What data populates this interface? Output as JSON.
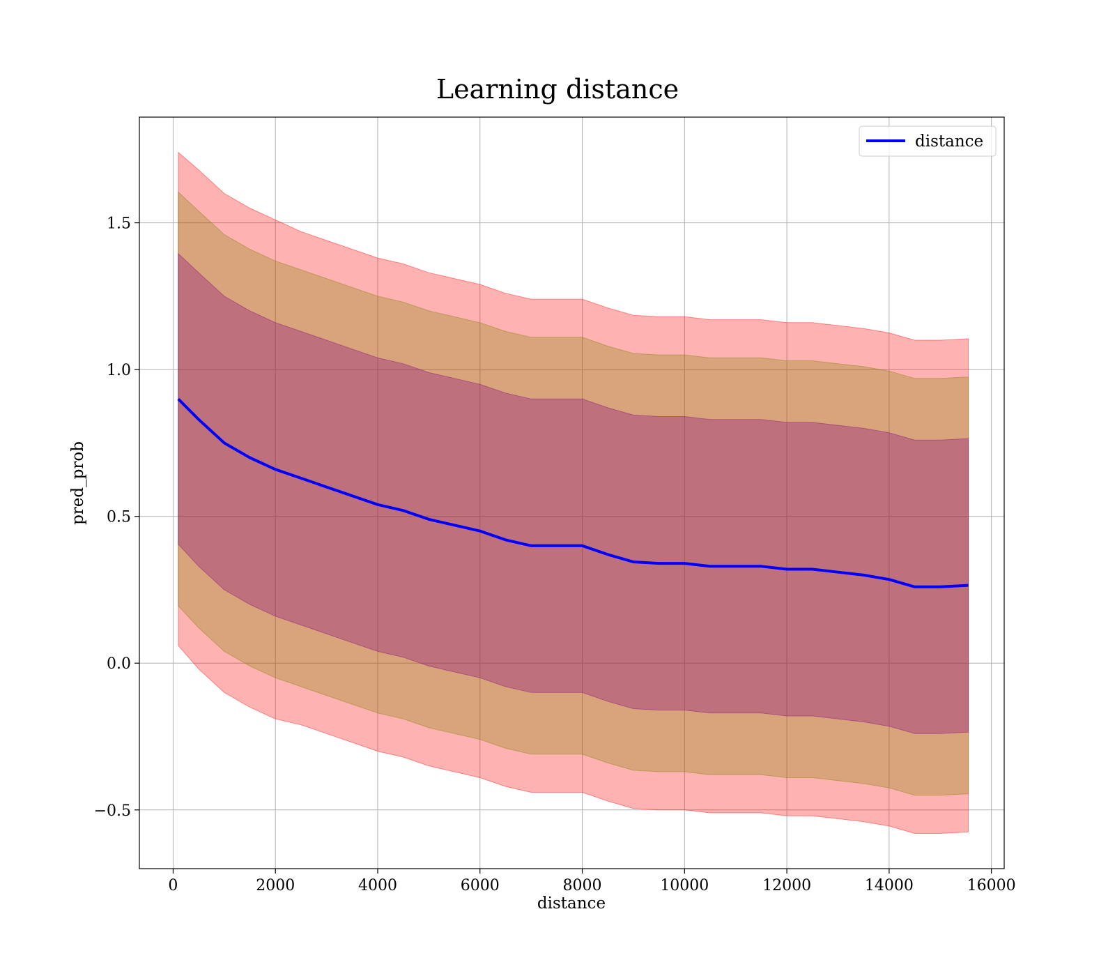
{
  "chart_data": {
    "type": "area",
    "title": "Learning distance",
    "xlabel": "distance",
    "ylabel": "pred_prob",
    "xlim": [
      -660,
      16250
    ],
    "ylim": [
      -0.7,
      1.86
    ],
    "xticks": [
      0,
      2000,
      4000,
      6000,
      8000,
      10000,
      12000,
      14000,
      16000
    ],
    "xtick_labels": [
      "0",
      "2000",
      "4000",
      "6000",
      "8000",
      "10000",
      "12000",
      "14000",
      "16000"
    ],
    "yticks": [
      -0.5,
      0.0,
      0.5,
      1.0,
      1.5
    ],
    "ytick_labels": [
      "−0.5",
      "0.0",
      "0.5",
      "1.0",
      "1.5"
    ],
    "grid": true,
    "legend": {
      "position": "top-right",
      "entries": [
        "distance"
      ]
    },
    "x": [
      100,
      500,
      1000,
      1500,
      2000,
      2500,
      3000,
      3500,
      4000,
      4500,
      5000,
      5500,
      6000,
      6500,
      7000,
      7500,
      8000,
      8500,
      9000,
      9500,
      10000,
      10500,
      11000,
      11500,
      12000,
      12500,
      13000,
      13500,
      14000,
      14500,
      15000,
      15550
    ],
    "series": [
      {
        "name": "distance",
        "values": [
          0.9,
          0.83,
          0.75,
          0.7,
          0.66,
          0.63,
          0.6,
          0.57,
          0.54,
          0.52,
          0.49,
          0.47,
          0.45,
          0.42,
          0.4,
          0.4,
          0.4,
          0.37,
          0.345,
          0.34,
          0.34,
          0.33,
          0.33,
          0.33,
          0.32,
          0.32,
          0.31,
          0.3,
          0.285,
          0.26,
          0.26,
          0.265
        ],
        "color": "#0000ff"
      }
    ],
    "bands": [
      {
        "k": 1,
        "color": "#800080",
        "opacity": 0.3
      },
      {
        "k": 2,
        "color": "#808000",
        "opacity": 0.3
      },
      {
        "k": 3,
        "color": "#ff0000",
        "opacity": 0.3
      }
    ],
    "band_halfwidth": [
      0.5,
      0.51,
      0.51,
      0.515,
      0.51,
      0.505,
      0.505,
      0.505,
      0.5,
      0.5,
      0.5,
      0.5,
      0.5,
      0.5,
      0.5,
      0.5,
      0.5,
      0.5,
      0.5,
      0.5,
      0.5,
      0.5,
      0.5,
      0.5,
      0.5,
      0.5,
      0.5,
      0.5,
      0.5,
      0.5,
      0.5,
      0.5
    ],
    "band_offsets": {
      "k1": [
        0.495,
        0.5,
        0.5,
        0.5,
        0.5,
        0.5,
        0.5,
        0.5,
        0.5,
        0.5,
        0.5,
        0.5,
        0.5,
        0.5,
        0.5,
        0.5,
        0.5,
        0.5,
        0.5,
        0.5,
        0.5,
        0.5,
        0.5,
        0.5,
        0.5,
        0.5,
        0.5,
        0.5,
        0.5,
        0.5,
        0.5,
        0.5
      ],
      "k2": [
        0.705,
        0.71,
        0.71,
        0.71,
        0.71,
        0.71,
        0.71,
        0.71,
        0.71,
        0.71,
        0.71,
        0.71,
        0.71,
        0.71,
        0.71,
        0.71,
        0.71,
        0.71,
        0.71,
        0.71,
        0.71,
        0.71,
        0.71,
        0.71,
        0.71,
        0.71,
        0.71,
        0.71,
        0.71,
        0.71,
        0.71,
        0.71
      ],
      "k3": [
        0.84,
        0.85,
        0.85,
        0.85,
        0.85,
        0.84,
        0.84,
        0.84,
        0.84,
        0.84,
        0.84,
        0.84,
        0.84,
        0.84,
        0.84,
        0.84,
        0.84,
        0.84,
        0.84,
        0.84,
        0.84,
        0.84,
        0.84,
        0.84,
        0.84,
        0.84,
        0.84,
        0.84,
        0.84,
        0.84,
        0.84,
        0.84
      ]
    }
  }
}
